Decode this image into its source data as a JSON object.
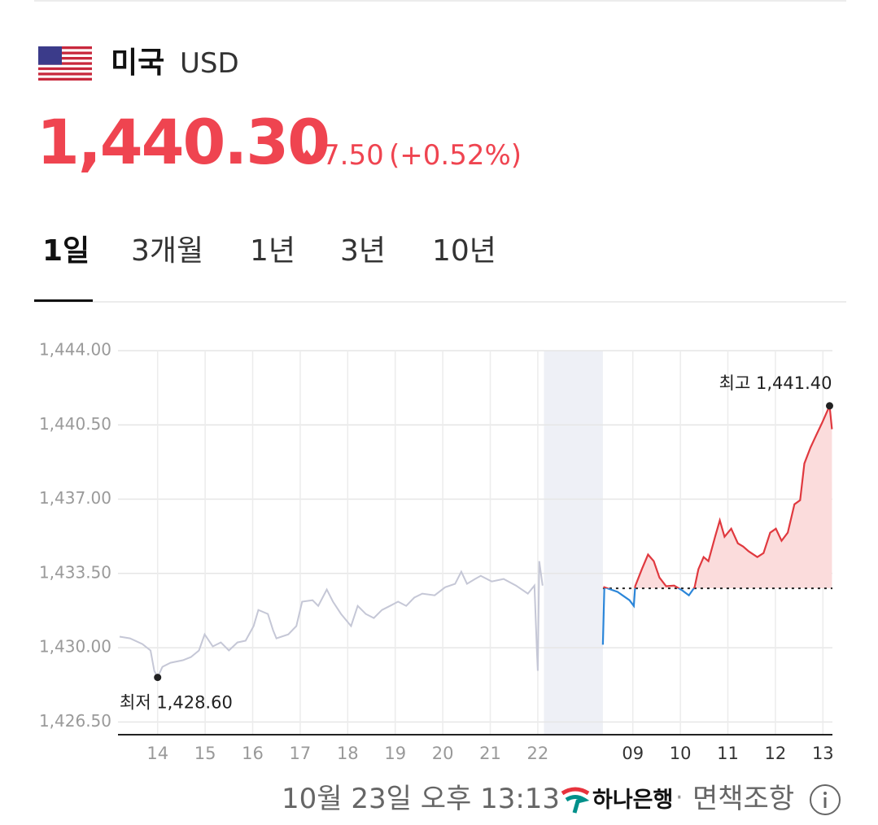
{
  "header": {
    "country": "미국",
    "currency": "USD",
    "price": "1,440.30",
    "change": "7.50",
    "change_pct": "(+0.52%)"
  },
  "tabs": [
    "1일",
    "3개월",
    "1년",
    "3년",
    "10년"
  ],
  "chart_data": {
    "type": "line",
    "xlim": [
      13.2,
      28.2
    ],
    "ylim": [
      1425.9,
      1444
    ],
    "xticks": [
      14,
      15,
      16,
      17,
      18,
      19,
      20,
      21,
      22,
      {
        "value": 24,
        "label": "09"
      },
      {
        "value": 25,
        "label": "10"
      },
      {
        "value": 26,
        "label": "11"
      },
      {
        "value": 27,
        "label": "12"
      },
      {
        "value": 28,
        "label": "13"
      }
    ],
    "yticks": [
      {
        "value": 1426.5,
        "label": "1,426.50"
      },
      {
        "value": 1430,
        "label": "1,430.00"
      },
      {
        "value": 1433.5,
        "label": "1,433.50"
      },
      {
        "value": 1437,
        "label": "1,437.00"
      },
      {
        "value": 1440.5,
        "label": "1,440.50"
      },
      {
        "value": 1444,
        "label": "1,444.00"
      }
    ],
    "grid": true,
    "closed_range": [
      22.13,
      23.37
    ],
    "prev_close": 1432.8,
    "series": [
      {
        "color": "#c5c7d6",
        "x": [
          13.2,
          13.42,
          13.68,
          13.85,
          13.93,
          14.0,
          14.1,
          14.27,
          14.53,
          14.7,
          14.87,
          14.99,
          15.16,
          15.33,
          15.5,
          15.68,
          15.85,
          16.02,
          16.12,
          16.32,
          16.43,
          16.5,
          16.75,
          16.92,
          17.04,
          17.26,
          17.38,
          17.56,
          17.69,
          17.86,
          18.07,
          18.21,
          18.38,
          18.55,
          18.72,
          18.89,
          19.06,
          19.23,
          19.4,
          19.57,
          19.83,
          20.05,
          20.26,
          20.39,
          20.51,
          20.68,
          20.8,
          21.03,
          21.28,
          21.54,
          21.79,
          21.93,
          21.98,
          22.0,
          22.03,
          22.1
        ],
        "values": [
          1430.52,
          1430.44,
          1430.17,
          1429.87,
          1428.91,
          1428.6,
          1429.1,
          1429.29,
          1429.41,
          1429.56,
          1429.87,
          1430.63,
          1430.06,
          1430.25,
          1429.87,
          1430.25,
          1430.33,
          1431.02,
          1431.78,
          1431.59,
          1430.82,
          1430.44,
          1430.63,
          1431.02,
          1432.17,
          1432.24,
          1431.97,
          1432.74,
          1432.17,
          1431.59,
          1431.02,
          1431.97,
          1431.59,
          1431.4,
          1431.78,
          1431.97,
          1432.17,
          1431.97,
          1432.36,
          1432.55,
          1432.47,
          1432.85,
          1433.01,
          1433.58,
          1433.01,
          1433.24,
          1433.39,
          1433.12,
          1433.24,
          1432.93,
          1432.55,
          1432.93,
          1429.87,
          1428.91,
          1434.08,
          1432.93
        ]
      },
      {
        "color": "#e0393f",
        "down_color": "#2b86d9",
        "fill": "#fbdcdc",
        "x": [
          23.37,
          23.4,
          23.68,
          23.93,
          24.02,
          24.05,
          24.19,
          24.32,
          24.44,
          24.56,
          24.7,
          24.87,
          25.04,
          25.18,
          25.3,
          25.38,
          25.49,
          25.59,
          25.73,
          25.83,
          25.93,
          26.07,
          26.21,
          26.32,
          26.44,
          26.62,
          26.75,
          26.89,
          27.01,
          27.13,
          27.26,
          27.4,
          27.52,
          27.61,
          27.74,
          27.86,
          27.98,
          28.14,
          28.19
        ],
        "values": [
          1430.14,
          1432.85,
          1432.63,
          1432.24,
          1431.97,
          1432.9,
          1433.7,
          1434.39,
          1434.08,
          1433.31,
          1432.9,
          1432.93,
          1432.7,
          1432.47,
          1432.85,
          1433.7,
          1434.27,
          1434.08,
          1435.23,
          1436.0,
          1435.23,
          1435.61,
          1434.92,
          1434.77,
          1434.54,
          1434.27,
          1434.46,
          1435.42,
          1435.61,
          1435.04,
          1435.42,
          1436.76,
          1436.95,
          1438.68,
          1439.44,
          1440.02,
          1440.59,
          1441.4,
          1440.3
        ]
      }
    ],
    "annotations": [
      {
        "text": "최저 1,428.60",
        "x": 14.0,
        "value": 1428.6
      },
      {
        "text": "최고 1,441.40",
        "x": 28.14,
        "value": 1441.4
      }
    ]
  },
  "footer": {
    "timestamp": "10월 23일 오후 13:13",
    "bank": "하나은행",
    "separator": "·",
    "disclaimer": "면책조항"
  }
}
